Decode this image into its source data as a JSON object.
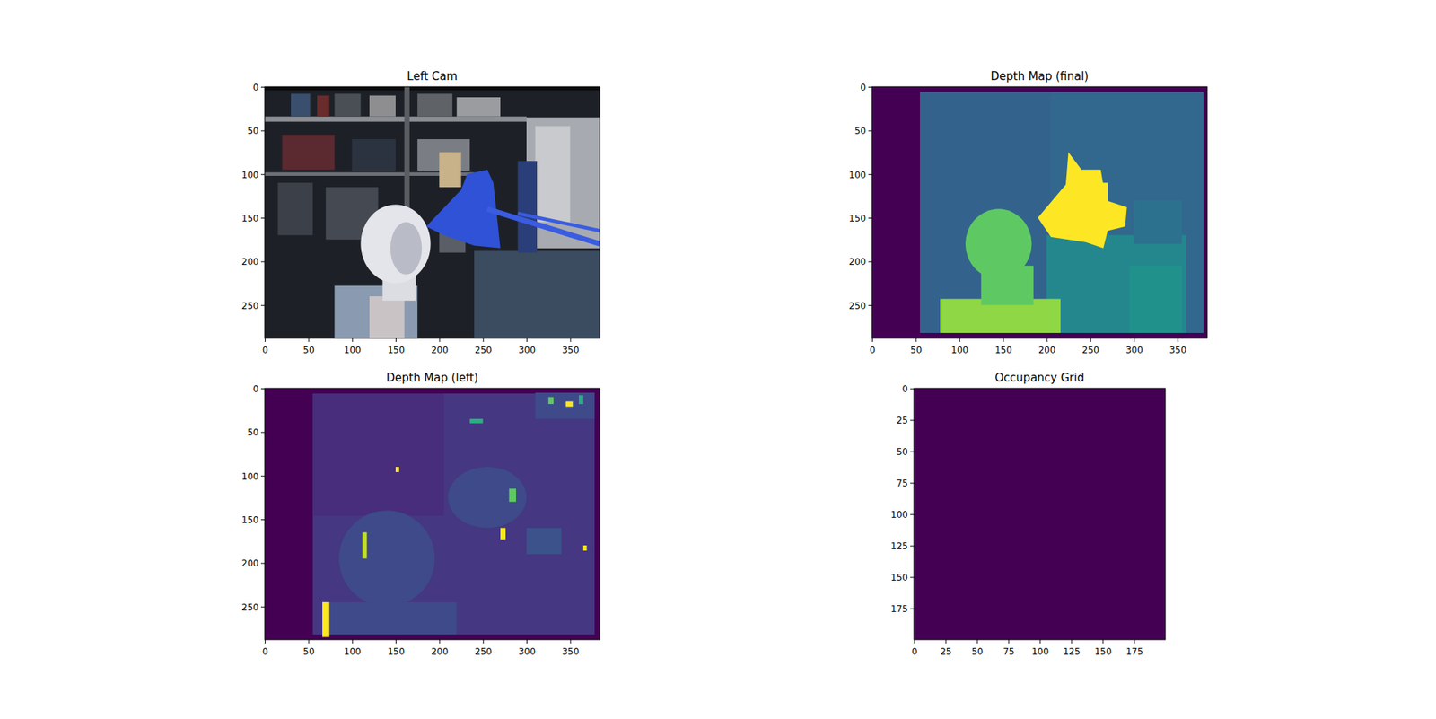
{
  "chart_data": [
    {
      "type": "image",
      "title": "Left Cam",
      "xlim": [
        -0.5,
        383.5
      ],
      "ylim": [
        287.5,
        -0.5
      ],
      "xticks": [
        0,
        50,
        100,
        150,
        200,
        250,
        300,
        350
      ],
      "yticks": [
        0,
        50,
        100,
        150,
        200,
        250
      ]
    },
    {
      "type": "image",
      "title": "Depth Map (final)",
      "xlim": [
        -0.5,
        383.5
      ],
      "ylim": [
        287.5,
        -0.5
      ],
      "xticks": [
        0,
        50,
        100,
        150,
        200,
        250,
        300,
        350
      ],
      "yticks": [
        0,
        50,
        100,
        150,
        200,
        250
      ]
    },
    {
      "type": "image",
      "title": "Depth Map (left)",
      "xlim": [
        -0.5,
        383.5
      ],
      "ylim": [
        287.5,
        -0.5
      ],
      "xticks": [
        0,
        50,
        100,
        150,
        200,
        250,
        300,
        350
      ],
      "yticks": [
        0,
        50,
        100,
        150,
        200,
        250
      ]
    },
    {
      "type": "image",
      "title": "Occupancy Grid",
      "xlim": [
        -0.5,
        199.5
      ],
      "ylim": [
        199.5,
        -0.5
      ],
      "xticks": [
        0,
        25,
        50,
        75,
        100,
        125,
        150,
        175
      ],
      "yticks": [
        0,
        25,
        50,
        75,
        100,
        125,
        150,
        175
      ]
    }
  ]
}
